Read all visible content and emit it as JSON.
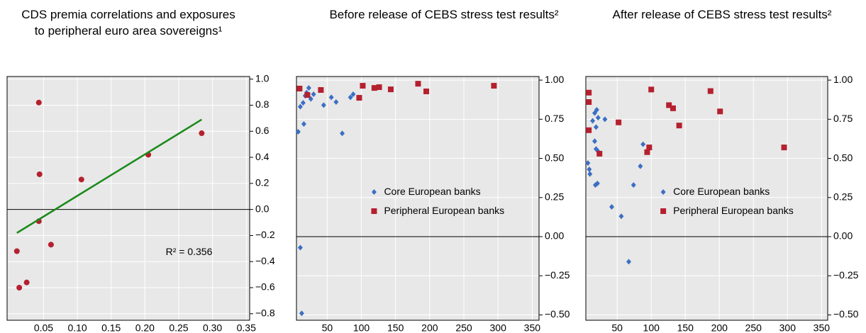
{
  "chart_data": [
    {
      "type": "scatter",
      "title": "CDS premia correlations and exposures to peripheral euro area sovereigns¹",
      "annotation": "R² = 0.356",
      "xlim": [
        -0.004,
        0.355
      ],
      "xticks": [
        0.05,
        {
          "value": 0.1,
          "label": "0.10"
        },
        0.15,
        {
          "value": 0.2,
          "label": "0.20"
        },
        0.25,
        {
          "value": 0.3,
          "label": "0.30"
        },
        0.35
      ],
      "ylim": [
        -0.85,
        1.02
      ],
      "yticks": [
        {
          "value": 1,
          "label": "1.0"
        },
        0.8,
        0.6,
        0.4,
        0.2,
        {
          "value": 0,
          "label": "0.0"
        },
        {
          "value": -0.2,
          "label": "−0.2"
        },
        {
          "value": -0.4,
          "label": "−0.4"
        },
        {
          "value": -0.6,
          "label": "−0.6"
        },
        {
          "value": -0.8,
          "label": "−0.8"
        }
      ],
      "grid": true,
      "series": [
        {
          "marker": "circle",
          "color": "#b5202e",
          "x": [
            0.043,
            0.044,
            0.043,
            0.106,
            0.061,
            0.0105,
            0.014,
            0.025,
            0.205,
            0.284
          ],
          "values": [
            0.82,
            0.27,
            -0.09,
            0.23,
            -0.27,
            -0.32,
            -0.6,
            -0.56,
            0.42,
            0.585
          ]
        },
        {
          "marker": "line",
          "color": "#1a8a1a",
          "x": [
            0.0105,
            0.284
          ],
          "values": [
            -0.18,
            0.69
          ]
        }
      ]
    },
    {
      "type": "scatter",
      "title": "Before release of CEBS stress test results²",
      "xlim": [
        5,
        360
      ],
      "xticks": [
        50,
        100,
        150,
        200,
        250,
        300,
        350
      ],
      "ylim": [
        -0.534,
        1.023
      ],
      "yticks": [
        {
          "value": 1,
          "label": "1.00"
        },
        0.75,
        {
          "value": 0.5,
          "label": "0.50"
        },
        0.25,
        {
          "value": 0,
          "label": "0.00"
        },
        {
          "value": -0.25,
          "label": "−0.25"
        },
        {
          "value": -0.5,
          "label": "−0.50"
        }
      ],
      "grid": true,
      "legend": "center",
      "series": [
        {
          "name": "Core European banks",
          "marker": "diamond",
          "color": "#3c6fc3",
          "x": [
            7.5,
            10.6,
            14.7,
            17.8,
            19.9,
            23,
            26,
            30,
            44.8,
            56,
            63,
            72,
            84,
            88,
            10.6,
            12.7,
            15.8
          ],
          "values": [
            0.67,
            0.83,
            0.855,
            0.9,
            0.92,
            0.95,
            0.88,
            0.91,
            0.84,
            0.89,
            0.86,
            0.66,
            0.89,
            0.91,
            -0.07,
            -0.49,
            0.72
          ]
        },
        {
          "name": "Peripheral European banks",
          "marker": "square",
          "color": "#b5202e",
          "x": [
            9.5,
            21,
            40.7,
            96.8,
            102,
            119,
            126,
            143,
            183,
            195,
            294
          ],
          "values": [
            0.946,
            0.905,
            0.937,
            0.887,
            0.964,
            0.95,
            0.955,
            0.941,
            0.977,
            0.928,
            0.964
          ]
        }
      ]
    },
    {
      "type": "scatter",
      "title": "After release of CEBS stress test results²",
      "xlim": [
        4,
        359
      ],
      "xticks": [
        50,
        100,
        150,
        200,
        250,
        300,
        350
      ],
      "ylim": [
        -0.534,
        1.023
      ],
      "yticks": [
        {
          "value": 1,
          "label": "1.00"
        },
        0.75,
        {
          "value": 0.5,
          "label": "0.50"
        },
        0.25,
        {
          "value": 0,
          "label": "0.00"
        },
        {
          "value": -0.25,
          "label": "−0.25"
        },
        {
          "value": -0.5,
          "label": "−0.50"
        }
      ],
      "grid": true,
      "legend": "center",
      "series": [
        {
          "name": "Core European banks",
          "marker": "diamond",
          "color": "#3c6fc3",
          "x": [
            7,
            9,
            10,
            14,
            17,
            20,
            22,
            19,
            17,
            19,
            21,
            18,
            21,
            32,
            42,
            56,
            67,
            74,
            84,
            88
          ],
          "values": [
            0.47,
            0.43,
            0.4,
            0.74,
            0.79,
            0.81,
            0.76,
            0.7,
            0.61,
            0.56,
            0.55,
            0.33,
            0.34,
            0.75,
            0.19,
            0.13,
            -0.16,
            0.33,
            0.45,
            0.59
          ]
        },
        {
          "name": "Peripheral European banks",
          "marker": "square",
          "color": "#b5202e",
          "x": [
            8.3,
            8.3,
            8.3,
            24,
            52,
            100,
            97,
            94,
            126,
            132,
            141,
            187,
            201,
            295
          ],
          "values": [
            0.92,
            0.86,
            0.68,
            0.53,
            0.73,
            0.94,
            0.57,
            0.54,
            0.84,
            0.82,
            0.71,
            0.93,
            0.8,
            0.57
          ]
        }
      ]
    }
  ]
}
